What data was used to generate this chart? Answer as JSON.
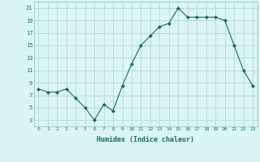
{
  "x": [
    0,
    1,
    2,
    3,
    4,
    5,
    6,
    7,
    8,
    9,
    10,
    11,
    12,
    13,
    14,
    15,
    16,
    17,
    18,
    19,
    20,
    21,
    22,
    23
  ],
  "y": [
    8,
    7.5,
    7.5,
    8,
    6.5,
    5,
    3,
    5.5,
    4.5,
    8.5,
    12,
    15,
    16.5,
    18,
    18.5,
    21,
    19.5,
    19.5,
    19.5,
    19.5,
    19,
    15,
    11,
    8.5
  ],
  "xlim": [
    -0.5,
    23.5
  ],
  "ylim": [
    2,
    22
  ],
  "yticks": [
    3,
    5,
    7,
    9,
    11,
    13,
    15,
    17,
    19,
    21
  ],
  "xticks": [
    0,
    1,
    2,
    3,
    4,
    5,
    6,
    7,
    8,
    9,
    10,
    11,
    12,
    13,
    14,
    15,
    16,
    17,
    18,
    19,
    20,
    21,
    22,
    23
  ],
  "xlabel": "Humidex (Indice chaleur)",
  "line_color": "#1a6b5a",
  "marker": "D",
  "marker_size": 2.0,
  "bg_color": "#d9f5f5",
  "grid_color": "#b0d0d0",
  "spine_color": "#8ab8b8"
}
